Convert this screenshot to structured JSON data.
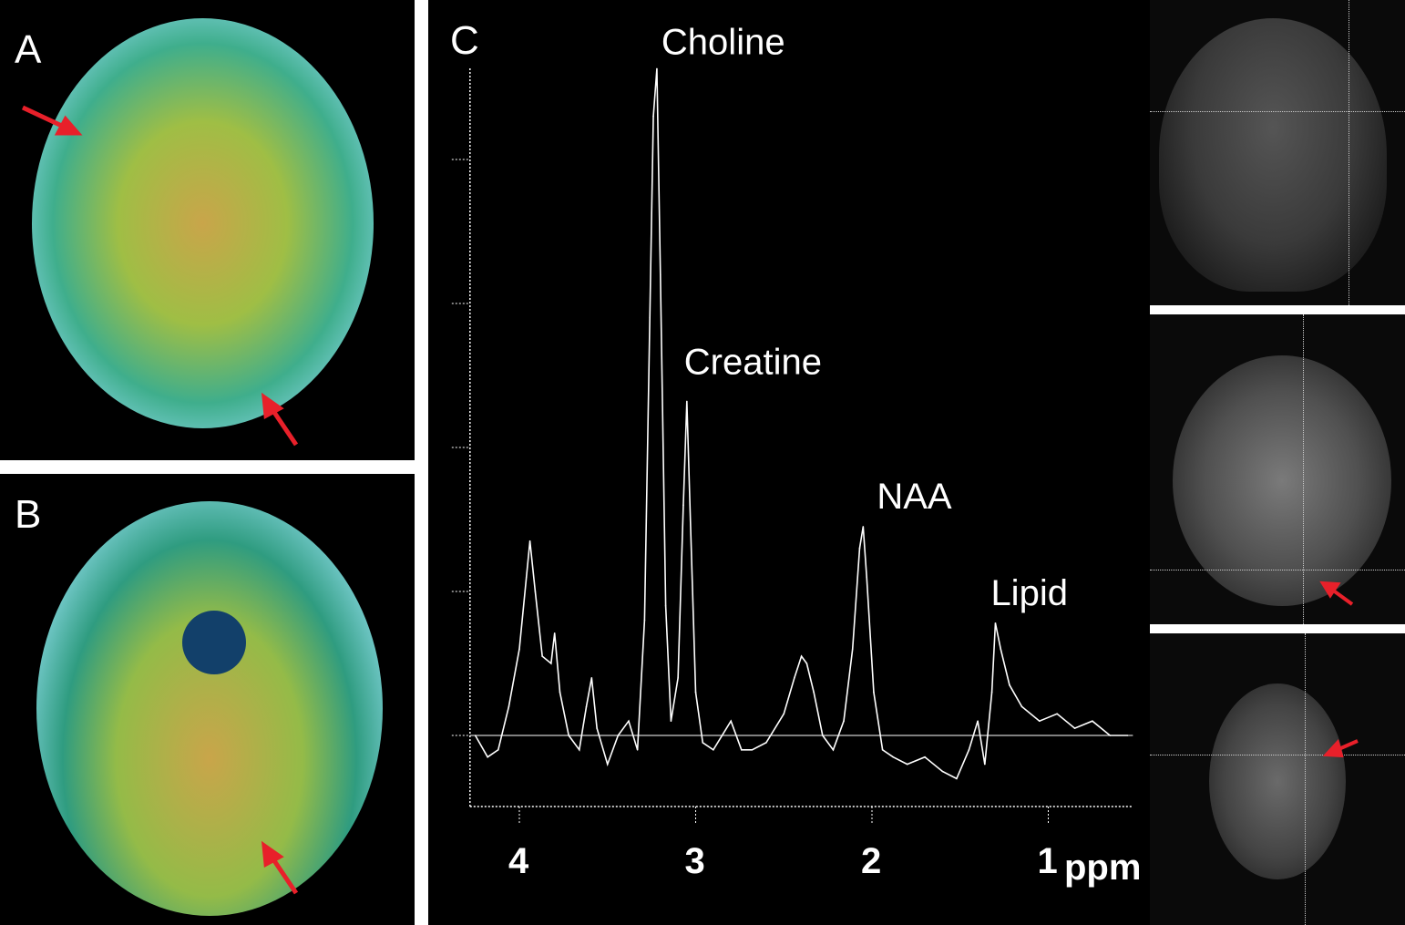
{
  "panels": {
    "a": {
      "label": "A"
    },
    "b": {
      "label": "B"
    },
    "c": {
      "label": "C"
    }
  },
  "colors": {
    "arrow": "#e8202a",
    "background": "#000000",
    "trace": "#ffffff"
  },
  "chart_data": {
    "type": "line",
    "title": "",
    "xlabel": "ppm",
    "ylabel": "",
    "x_reversed": true,
    "xlim": [
      4.28,
      0.52
    ],
    "ylim": [
      -0.5,
      4.7
    ],
    "xticks": [
      4,
      3,
      2,
      1
    ],
    "xtick_labels": [
      "4",
      "3",
      "2",
      "1"
    ],
    "yticks": [
      0,
      1,
      2,
      3,
      4
    ],
    "grid": false,
    "annotations": [
      {
        "text": "Choline",
        "x": 3.22,
        "y": 4.63
      },
      {
        "text": "Creatine",
        "x": 3.04,
        "y": 2.32
      },
      {
        "text": "NAA",
        "x": 2.05,
        "y": 1.45
      },
      {
        "text": "Lipid",
        "x": 1.3,
        "y": 0.78
      }
    ],
    "series": [
      {
        "x": [
          4.25,
          4.18,
          4.12,
          4.06,
          4.0,
          3.96,
          3.94,
          3.91,
          3.87,
          3.82,
          3.8,
          3.77,
          3.72,
          3.66,
          3.62,
          3.59,
          3.56,
          3.5,
          3.44,
          3.38,
          3.33,
          3.29,
          3.26,
          3.24,
          3.22,
          3.2,
          3.17,
          3.14,
          3.1,
          3.07,
          3.05,
          3.03,
          3.0,
          2.96,
          2.9,
          2.8,
          2.74,
          2.68,
          2.6,
          2.5,
          2.44,
          2.4,
          2.37,
          2.33,
          2.28,
          2.22,
          2.16,
          2.11,
          2.07,
          2.05,
          2.03,
          1.99,
          1.94,
          1.88,
          1.8,
          1.7,
          1.6,
          1.52,
          1.45,
          1.4,
          1.36,
          1.32,
          1.3,
          1.27,
          1.22,
          1.15,
          1.05,
          0.95,
          0.85,
          0.75,
          0.65,
          0.55
        ],
        "y": [
          0.0,
          -0.15,
          -0.1,
          0.2,
          0.6,
          1.1,
          1.35,
          1.0,
          0.55,
          0.5,
          0.71,
          0.3,
          0.0,
          -0.1,
          0.2,
          0.4,
          0.05,
          -0.2,
          0.0,
          0.1,
          -0.1,
          0.8,
          2.9,
          4.3,
          4.63,
          3.2,
          0.9,
          0.1,
          0.4,
          1.6,
          2.32,
          1.5,
          0.3,
          -0.05,
          -0.1,
          0.1,
          -0.1,
          -0.1,
          -0.05,
          0.15,
          0.4,
          0.55,
          0.5,
          0.3,
          0.0,
          -0.1,
          0.1,
          0.6,
          1.3,
          1.45,
          1.1,
          0.3,
          -0.1,
          -0.15,
          -0.2,
          -0.15,
          -0.25,
          -0.3,
          -0.1,
          0.1,
          -0.2,
          0.3,
          0.78,
          0.6,
          0.35,
          0.2,
          0.1,
          0.15,
          0.05,
          0.1,
          0.0,
          0.0
        ]
      }
    ]
  }
}
